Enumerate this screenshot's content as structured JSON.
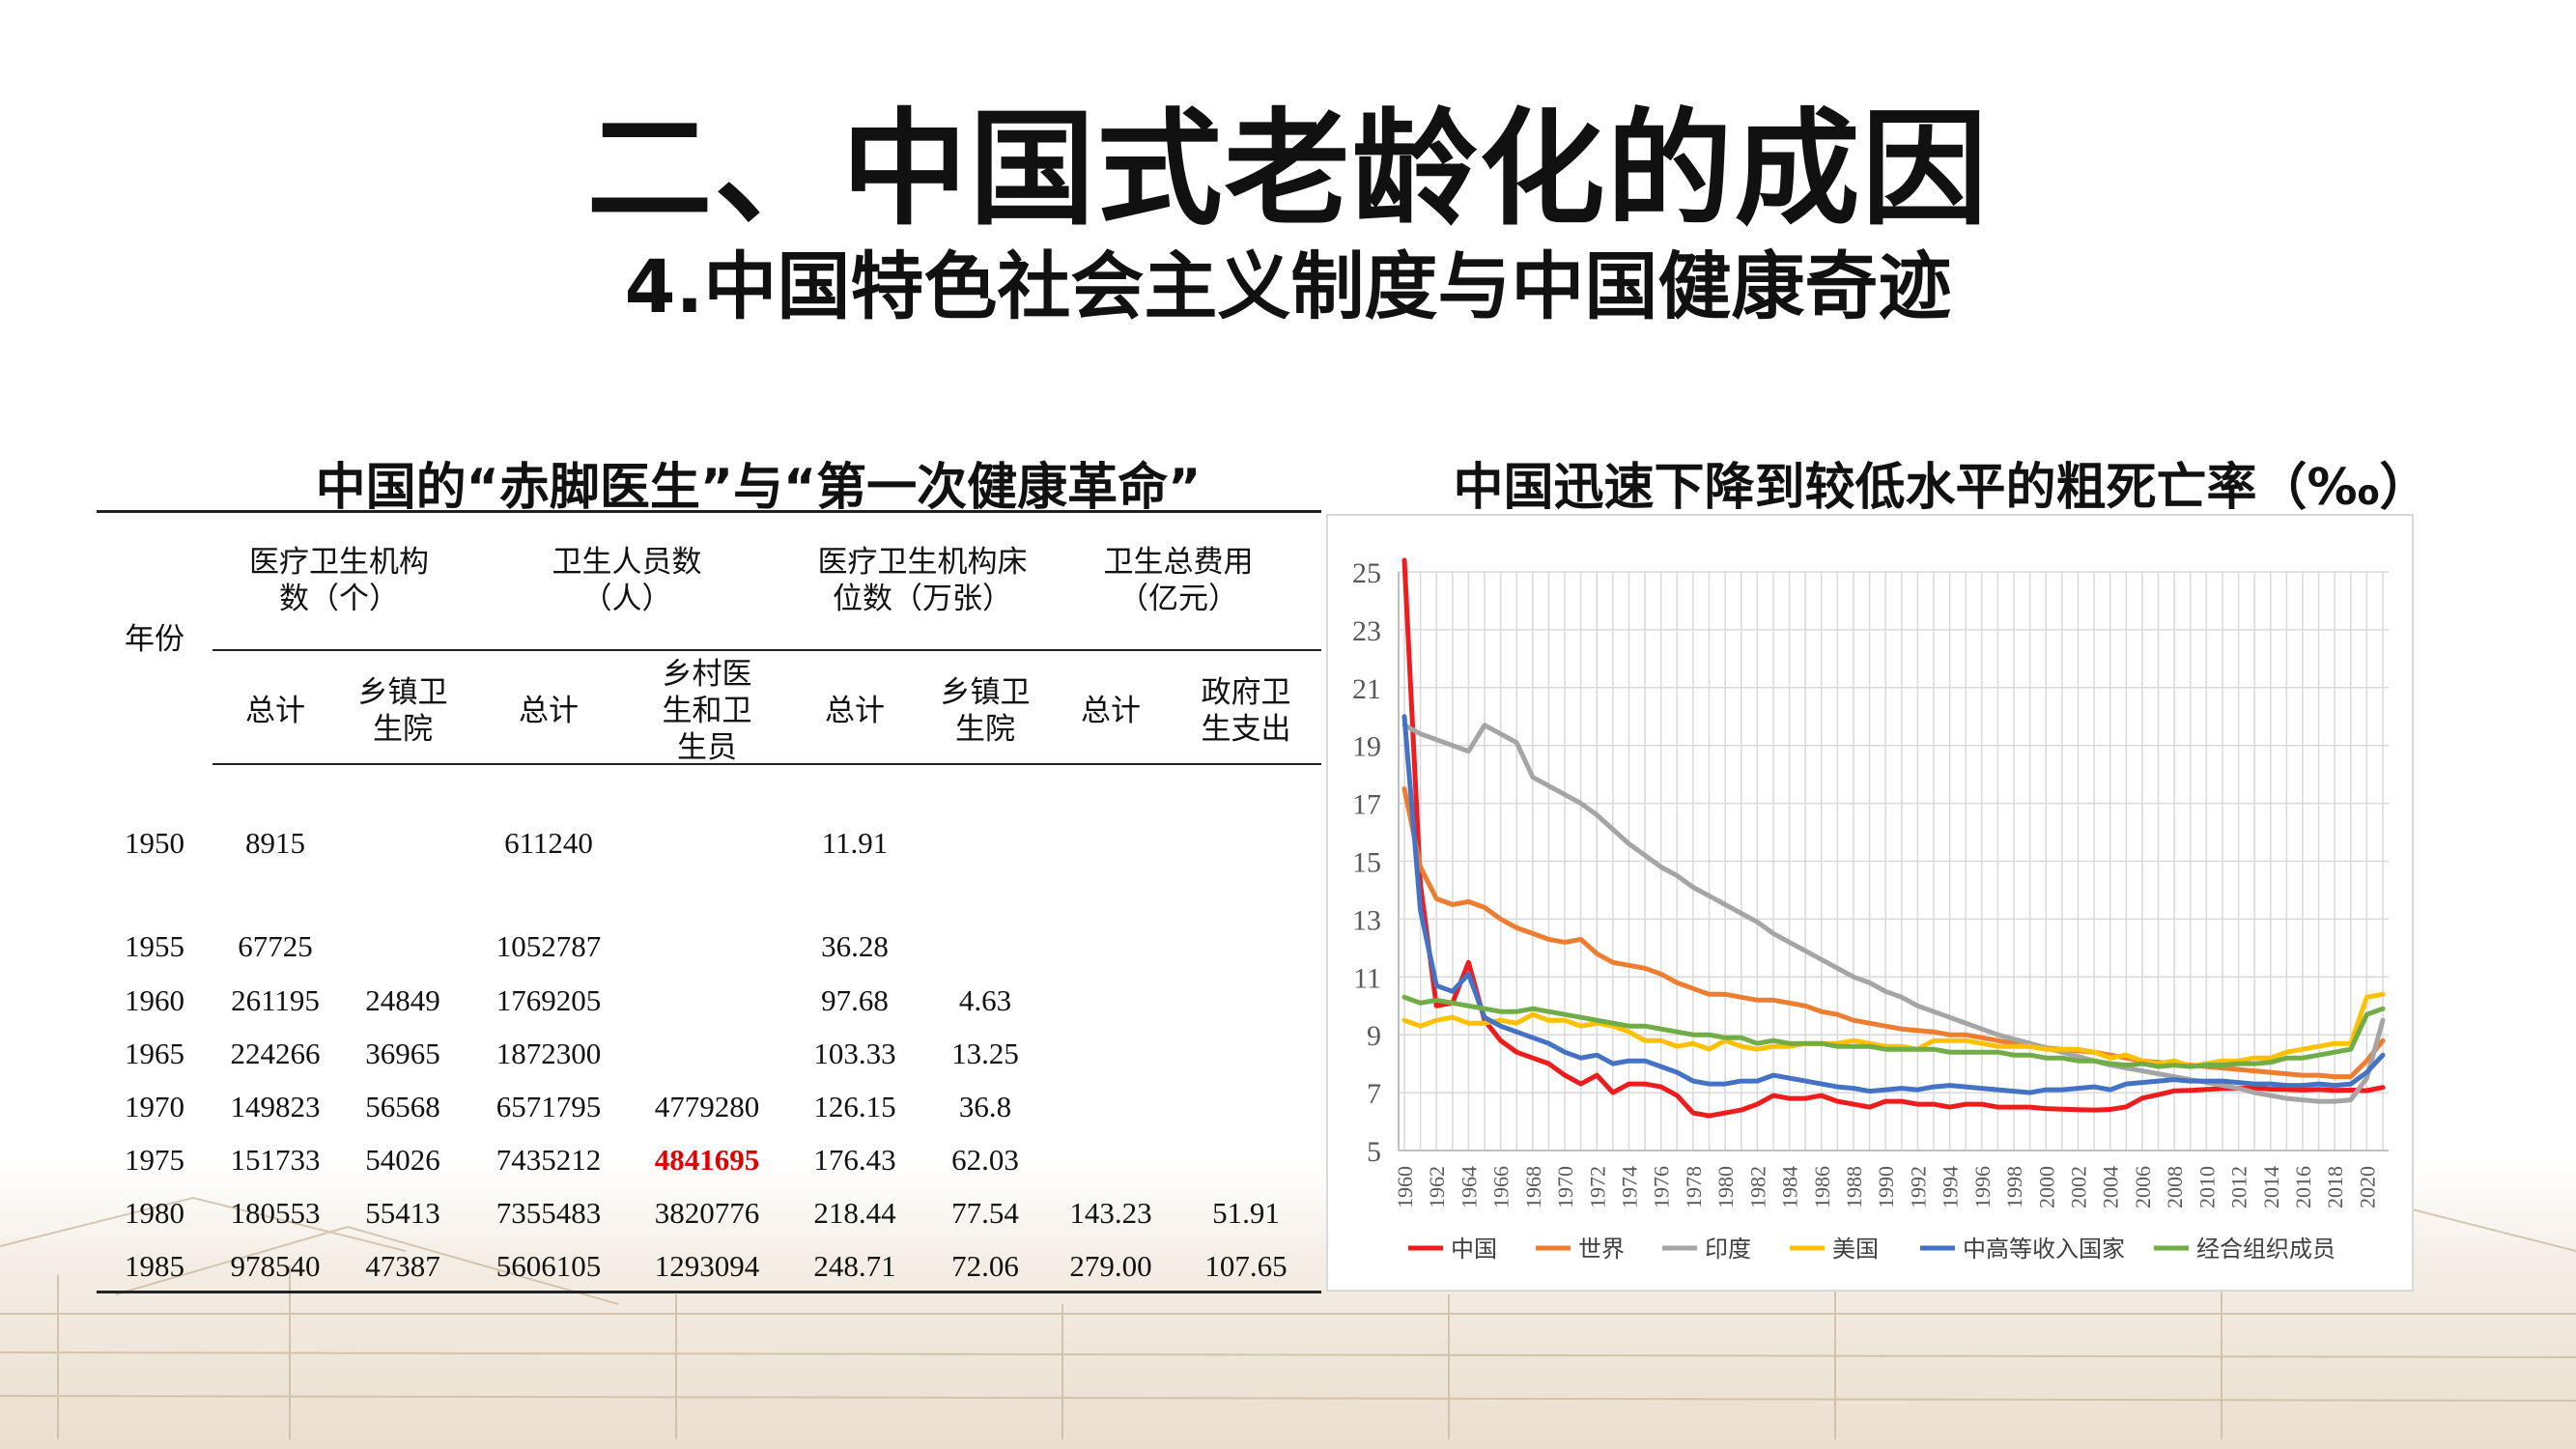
{
  "title": "二、中国式老龄化的成因",
  "subtitle": "4.中国特色社会主义制度与中国健康奇迹",
  "table_title": "中国的“赤脚医生”与“第一次健康革命”",
  "chart_title": "中国迅速下降到较低水平的粗死亡率（‰）",
  "table": {
    "year_header": "年份",
    "groups": [
      {
        "label": "医疗卫生机构\n数（个）",
        "subs": [
          "总计",
          "乡镇卫\n生院"
        ]
      },
      {
        "label": "卫生人员数\n（人）",
        "subs": [
          "总计",
          "乡村医\n生和卫\n生员"
        ]
      },
      {
        "label": "医疗卫生机构床\n位数（万张）",
        "subs": [
          "总计",
          "乡镇卫\n生院"
        ]
      },
      {
        "label": "卫生总费用\n（亿元）",
        "subs": [
          "总计",
          "政府卫\n生支出"
        ]
      }
    ],
    "rows": [
      [
        "1950",
        "8915",
        "",
        "611240",
        "",
        "11.91",
        "",
        "",
        ""
      ],
      [
        "1955",
        "67725",
        "",
        "1052787",
        "",
        "36.28",
        "",
        "",
        ""
      ],
      [
        "1960",
        "261195",
        "24849",
        "1769205",
        "",
        "97.68",
        "4.63",
        "",
        ""
      ],
      [
        "1965",
        "224266",
        "36965",
        "1872300",
        "",
        "103.33",
        "13.25",
        "",
        ""
      ],
      [
        "1970",
        "149823",
        "56568",
        "6571795",
        "4779280",
        "126.15",
        "36.8",
        "",
        ""
      ],
      [
        "1975",
        "151733",
        "54026",
        "7435212",
        "4841695",
        "176.43",
        "62.03",
        "",
        ""
      ],
      [
        "1980",
        "180553",
        "55413",
        "7355483",
        "3820776",
        "218.44",
        "77.54",
        "143.23",
        "51.91"
      ],
      [
        "1985",
        "978540",
        "47387",
        "5606105",
        "1293094",
        "248.71",
        "72.06",
        "279.00",
        "107.65"
      ]
    ],
    "highlight_value": "4841695",
    "highlight_color": "#e00000"
  },
  "chart_data": {
    "type": "line",
    "x": [
      1960,
      1961,
      1962,
      1963,
      1964,
      1965,
      1966,
      1967,
      1968,
      1969,
      1970,
      1971,
      1972,
      1973,
      1974,
      1975,
      1976,
      1977,
      1978,
      1979,
      1980,
      1981,
      1982,
      1983,
      1984,
      1985,
      1986,
      1987,
      1988,
      1989,
      1990,
      1991,
      1992,
      1993,
      1994,
      1995,
      1996,
      1997,
      1998,
      1999,
      2000,
      2001,
      2002,
      2003,
      2004,
      2005,
      2006,
      2007,
      2008,
      2009,
      2010,
      2011,
      2012,
      2013,
      2014,
      2015,
      2016,
      2017,
      2018,
      2019,
      2020,
      2021
    ],
    "x_tick_labels": [
      "1960",
      "1962",
      "1964",
      "1966",
      "1968",
      "1970",
      "1972",
      "1974",
      "1976",
      "1978",
      "1980",
      "1982",
      "1984",
      "1986",
      "1988",
      "1990",
      "1992",
      "1994",
      "1996",
      "1998",
      "2000",
      "2002",
      "2004",
      "2006",
      "2008",
      "2010",
      "2012",
      "2014",
      "2016",
      "2018",
      "2020"
    ],
    "y_ticks": [
      5,
      7,
      9,
      11,
      13,
      15,
      17,
      19,
      21,
      23,
      25
    ],
    "ylim": [
      5,
      25
    ],
    "grid": true,
    "legend_position": "bottom",
    "series": [
      {
        "name": "中国",
        "color": "#ee1c1c",
        "values": [
          25.4,
          14.2,
          10.0,
          10.1,
          11.5,
          9.5,
          8.8,
          8.4,
          8.2,
          8.0,
          7.6,
          7.3,
          7.6,
          7.0,
          7.3,
          7.3,
          7.2,
          6.9,
          6.3,
          6.2,
          6.3,
          6.4,
          6.6,
          6.9,
          6.8,
          6.8,
          6.9,
          6.7,
          6.6,
          6.5,
          6.7,
          6.7,
          6.6,
          6.6,
          6.5,
          6.6,
          6.6,
          6.5,
          6.5,
          6.5,
          6.45,
          6.43,
          6.41,
          6.4,
          6.42,
          6.51,
          6.81,
          6.93,
          7.06,
          7.08,
          7.11,
          7.14,
          7.15,
          7.16,
          7.12,
          7.11,
          7.09,
          7.11,
          7.08,
          7.09,
          7.07,
          7.18
        ]
      },
      {
        "name": "世界",
        "color": "#ed7d31",
        "values": [
          17.5,
          14.8,
          13.7,
          13.5,
          13.6,
          13.4,
          13.0,
          12.7,
          12.5,
          12.3,
          12.2,
          12.3,
          11.8,
          11.5,
          11.4,
          11.3,
          11.1,
          10.8,
          10.6,
          10.4,
          10.4,
          10.3,
          10.2,
          10.2,
          10.1,
          10.0,
          9.8,
          9.7,
          9.5,
          9.4,
          9.3,
          9.2,
          9.15,
          9.1,
          9.0,
          9.0,
          8.9,
          8.8,
          8.7,
          8.6,
          8.55,
          8.5,
          8.45,
          8.4,
          8.3,
          8.2,
          8.1,
          8.05,
          8.0,
          7.95,
          7.9,
          7.85,
          7.8,
          7.75,
          7.7,
          7.65,
          7.6,
          7.6,
          7.55,
          7.55,
          8.1,
          8.8
        ]
      },
      {
        "name": "印度",
        "color": "#a5a5a5",
        "values": [
          19.7,
          19.4,
          19.2,
          19.0,
          18.8,
          19.7,
          19.4,
          19.1,
          17.9,
          17.6,
          17.3,
          17.0,
          16.6,
          16.1,
          15.6,
          15.2,
          14.8,
          14.5,
          14.1,
          13.8,
          13.5,
          13.2,
          12.9,
          12.5,
          12.2,
          11.9,
          11.6,
          11.3,
          11.0,
          10.8,
          10.5,
          10.3,
          10.0,
          9.8,
          9.6,
          9.4,
          9.2,
          9.0,
          8.85,
          8.7,
          8.55,
          8.4,
          8.25,
          8.1,
          7.95,
          7.85,
          7.75,
          7.65,
          7.55,
          7.45,
          7.35,
          7.25,
          7.15,
          7.0,
          6.9,
          6.8,
          6.75,
          6.7,
          6.7,
          6.75,
          7.5,
          9.5
        ]
      },
      {
        "name": "美国",
        "color": "#ffc000",
        "values": [
          9.5,
          9.3,
          9.5,
          9.6,
          9.4,
          9.4,
          9.5,
          9.4,
          9.7,
          9.5,
          9.5,
          9.3,
          9.4,
          9.3,
          9.1,
          8.8,
          8.8,
          8.6,
          8.7,
          8.5,
          8.8,
          8.6,
          8.5,
          8.6,
          8.6,
          8.7,
          8.7,
          8.7,
          8.8,
          8.7,
          8.6,
          8.6,
          8.5,
          8.8,
          8.8,
          8.8,
          8.7,
          8.6,
          8.6,
          8.6,
          8.5,
          8.5,
          8.5,
          8.4,
          8.2,
          8.3,
          8.1,
          8.0,
          8.1,
          7.9,
          8.0,
          8.1,
          8.1,
          8.2,
          8.2,
          8.4,
          8.5,
          8.6,
          8.7,
          8.7,
          10.3,
          10.4
        ]
      },
      {
        "name": "中高等收入国家",
        "color": "#4472c4",
        "values": [
          20.0,
          13.3,
          10.7,
          10.5,
          11.1,
          9.6,
          9.3,
          9.1,
          8.9,
          8.7,
          8.4,
          8.2,
          8.3,
          8.0,
          8.1,
          8.1,
          7.9,
          7.7,
          7.4,
          7.3,
          7.3,
          7.4,
          7.4,
          7.6,
          7.5,
          7.4,
          7.3,
          7.2,
          7.15,
          7.05,
          7.1,
          7.15,
          7.1,
          7.2,
          7.25,
          7.2,
          7.15,
          7.1,
          7.05,
          7.0,
          7.1,
          7.1,
          7.15,
          7.2,
          7.1,
          7.3,
          7.35,
          7.4,
          7.45,
          7.4,
          7.4,
          7.4,
          7.35,
          7.3,
          7.3,
          7.25,
          7.25,
          7.3,
          7.25,
          7.3,
          7.7,
          8.3
        ]
      },
      {
        "name": "经合组织成员",
        "color": "#70ad47",
        "values": [
          10.3,
          10.1,
          10.2,
          10.1,
          10.0,
          9.9,
          9.8,
          9.8,
          9.9,
          9.8,
          9.7,
          9.6,
          9.5,
          9.4,
          9.3,
          9.3,
          9.2,
          9.1,
          9.0,
          9.0,
          8.9,
          8.9,
          8.7,
          8.8,
          8.7,
          8.7,
          8.7,
          8.6,
          8.6,
          8.6,
          8.5,
          8.5,
          8.5,
          8.5,
          8.4,
          8.4,
          8.4,
          8.4,
          8.3,
          8.3,
          8.2,
          8.2,
          8.1,
          8.1,
          8.0,
          7.95,
          8.0,
          7.9,
          7.95,
          7.9,
          7.95,
          7.95,
          8.0,
          8.0,
          8.05,
          8.2,
          8.2,
          8.3,
          8.4,
          8.5,
          9.7,
          9.9
        ]
      }
    ]
  }
}
